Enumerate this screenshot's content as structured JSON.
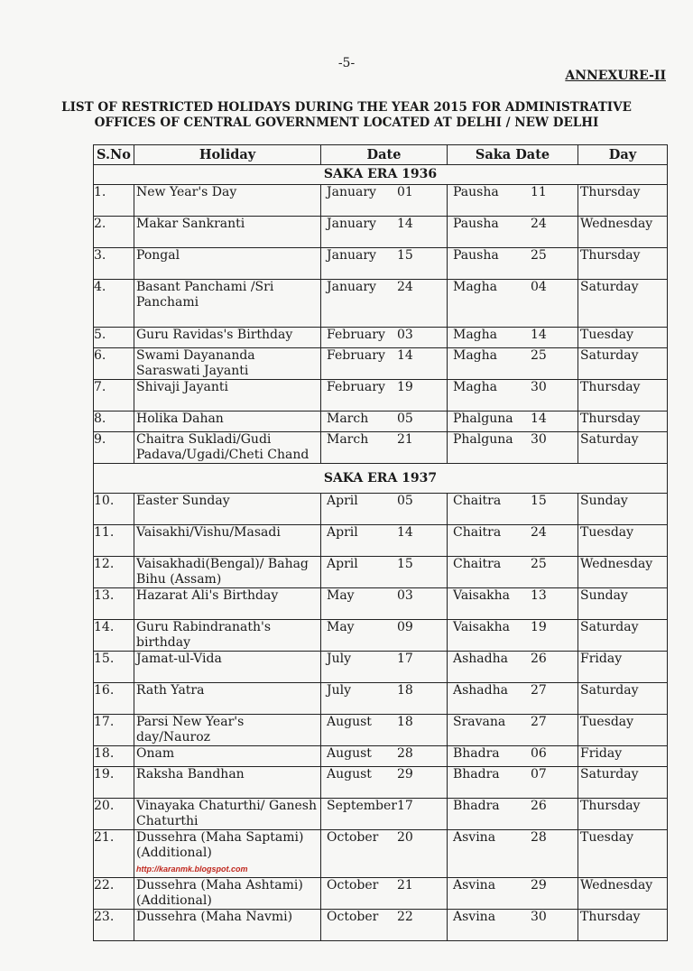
{
  "page_number": "-5-",
  "annexure": "ANNEXURE-II",
  "title_line1": "LIST OF RESTRICTED HOLIDAYS DURING THE YEAR 2015 FOR ADMINISTRATIVE",
  "title_line2": "OFFICES OF CENTRAL GOVERNMENT LOCATED AT DELHI / NEW DELHI",
  "watermark": "http://karanmk.blogspot.com",
  "table": {
    "headers": [
      "S.No",
      "Holiday",
      "Date",
      "Saka Date",
      "Day"
    ],
    "sections": [
      {
        "era": "SAKA ERA 1936",
        "rows": [
          {
            "sno": "1.",
            "holiday": "New Year's Day",
            "month": "January",
            "day": "01",
            "saka_month": "Pausha",
            "saka_day": "11",
            "weekday": "Thursday"
          },
          {
            "sno": "2.",
            "holiday": "Makar Sankranti",
            "month": "January",
            "day": "14",
            "saka_month": "Pausha",
            "saka_day": "24",
            "weekday": "Wednesday"
          },
          {
            "sno": "3.",
            "holiday": "Pongal",
            "month": "January",
            "day": "15",
            "saka_month": "Pausha",
            "saka_day": "25",
            "weekday": "Thursday"
          },
          {
            "sno": "4.",
            "holiday": "Basant Panchami /Sri Panchami",
            "month": "January",
            "day": "24",
            "saka_month": "Magha",
            "saka_day": "04",
            "weekday": "Saturday"
          },
          {
            "sno": "5.",
            "holiday": "Guru Ravidas's Birthday",
            "month": "February",
            "day": "03",
            "saka_month": "Magha",
            "saka_day": "14",
            "weekday": "Tuesday"
          },
          {
            "sno": "6.",
            "holiday": "Swami Dayananda Saraswati Jayanti",
            "month": "February",
            "day": "14",
            "saka_month": "Magha",
            "saka_day": "25",
            "weekday": "Saturday"
          },
          {
            "sno": "7.",
            "holiday": "Shivaji Jayanti",
            "month": "February",
            "day": "19",
            "saka_month": "Magha",
            "saka_day": "30",
            "weekday": "Thursday"
          },
          {
            "sno": "8.",
            "holiday": "Holika Dahan",
            "month": "March",
            "day": "05",
            "saka_month": "Phalguna",
            "saka_day": "14",
            "weekday": "Thursday"
          },
          {
            "sno": "9.",
            "holiday": "Chaitra Sukladi/Gudi Padava/Ugadi/Cheti Chand",
            "month": "March",
            "day": "21",
            "saka_month": "Phalguna",
            "saka_day": "30",
            "weekday": "Saturday"
          }
        ]
      },
      {
        "era": "SAKA ERA 1937",
        "rows": [
          {
            "sno": "10.",
            "holiday": "Easter Sunday",
            "month": "April",
            "day": "05",
            "saka_month": "Chaitra",
            "saka_day": "15",
            "weekday": "Sunday"
          },
          {
            "sno": "11.",
            "holiday": "Vaisakhi/Vishu/Masadi",
            "month": "April",
            "day": "14",
            "saka_month": "Chaitra",
            "saka_day": "24",
            "weekday": "Tuesday"
          },
          {
            "sno": "12.",
            "holiday": "Vaisakhadi(Bengal)/ Bahag Bihu (Assam)",
            "month": "April",
            "day": "15",
            "saka_month": "Chaitra",
            "saka_day": "25",
            "weekday": "Wednesday"
          },
          {
            "sno": "13.",
            "holiday": "Hazarat Ali's Birthday",
            "month": "May",
            "day": "03",
            "saka_month": "Vaisakha",
            "saka_day": "13",
            "weekday": "Sunday"
          },
          {
            "sno": "14.",
            "holiday": "Guru Rabindranath's birthday",
            "month": "May",
            "day": "09",
            "saka_month": "Vaisakha",
            "saka_day": "19",
            "weekday": "Saturday"
          },
          {
            "sno": "15.",
            "holiday": "Jamat-ul-Vida",
            "month": "July",
            "day": "17",
            "saka_month": "Ashadha",
            "saka_day": "26",
            "weekday": "Friday"
          },
          {
            "sno": "16.",
            "holiday": "Rath Yatra",
            "month": "July",
            "day": "18",
            "saka_month": "Ashadha",
            "saka_day": "27",
            "weekday": "Saturday"
          },
          {
            "sno": "17.",
            "holiday": "Parsi New Year's day/Nauroz",
            "month": "August",
            "day": "18",
            "saka_month": "Sravana",
            "saka_day": "27",
            "weekday": "Tuesday"
          },
          {
            "sno": "18.",
            "holiday": "Onam",
            "month": "August",
            "day": "28",
            "saka_month": "Bhadra",
            "saka_day": "06",
            "weekday": "Friday"
          },
          {
            "sno": "19.",
            "holiday": "Raksha Bandhan",
            "month": "August",
            "day": "29",
            "saka_month": "Bhadra",
            "saka_day": "07",
            "weekday": "Saturday"
          },
          {
            "sno": "20.",
            "holiday": "Vinayaka Chaturthi/ Ganesh Chaturthi",
            "month": "September",
            "day": "17",
            "saka_month": "Bhadra",
            "saka_day": "26",
            "weekday": "Thursday"
          },
          {
            "sno": "21.",
            "holiday": "Dussehra (Maha Saptami) (Additional)",
            "month": "October",
            "day": "20",
            "saka_month": "Asvina",
            "saka_day": "28",
            "weekday": "Tuesday"
          },
          {
            "sno": "22.",
            "holiday": "Dussehra (Maha Ashtami) (Additional)",
            "month": "October",
            "day": "21",
            "saka_month": "Asvina",
            "saka_day": "29",
            "weekday": "Wednesday"
          },
          {
            "sno": "23.",
            "holiday": "Dussehra (Maha Navmi)",
            "month": "October",
            "day": "22",
            "saka_month": "Asvina",
            "saka_day": "30",
            "weekday": "Thursday"
          }
        ]
      }
    ]
  }
}
